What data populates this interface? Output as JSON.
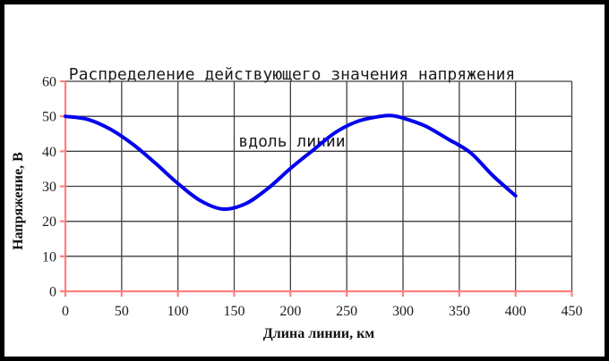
{
  "window": {
    "background": "#ffffff",
    "frame_color": "#000000"
  },
  "chart_data": {
    "type": "line",
    "title": "Распределение действующего значения напряжения вдоль линии",
    "title_lines": [
      "Распределение действующего значения напряжения",
      "вдоль линии"
    ],
    "xlabel": "Длина линии, км",
    "ylabel": "Напряжение, В",
    "xlim": [
      0,
      450
    ],
    "ylim": [
      0,
      60
    ],
    "x_ticks": [
      0,
      50,
      100,
      150,
      200,
      250,
      300,
      350,
      400,
      450
    ],
    "y_ticks": [
      0,
      10,
      20,
      30,
      40,
      50,
      60
    ],
    "grid": true,
    "legend_position": "none",
    "colors": {
      "axis": "#ff8080",
      "grid": "#3f3f3f",
      "curve": "#0101ee",
      "text": "#1b1b1b"
    },
    "series": [
      {
        "name": "Напряжение вдоль линии",
        "color": "#0101ee",
        "x": [
          0,
          20,
          40,
          60,
          80,
          100,
          120,
          140,
          160,
          180,
          200,
          220,
          240,
          260,
          280,
          290,
          300,
          320,
          340,
          360,
          380,
          400
        ],
        "y": [
          50.0,
          49.1,
          46.3,
          42.0,
          36.6,
          30.8,
          25.9,
          23.5,
          25.0,
          29.4,
          35.1,
          40.3,
          45.4,
          48.6,
          50.0,
          50.2,
          49.5,
          47.2,
          43.5,
          39.6,
          33.0,
          27.3
        ]
      }
    ]
  }
}
